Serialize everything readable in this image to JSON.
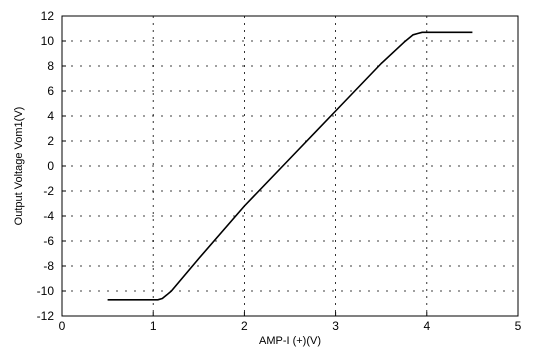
{
  "chart_data": {
    "type": "line",
    "title": "",
    "xlabel": "AMP-I (+)(V)",
    "ylabel": "Output Voltage Vom1(V)",
    "xlim": [
      0,
      5
    ],
    "ylim": [
      -12,
      12
    ],
    "xticks": [
      0,
      1,
      2,
      3,
      4,
      5
    ],
    "yticks": [
      -12,
      -10,
      -8,
      -6,
      -4,
      -2,
      0,
      2,
      4,
      6,
      8,
      10,
      12
    ],
    "grid": true,
    "legend": "none",
    "series": [
      {
        "color": "#000000",
        "x": [
          0.5,
          1.0,
          1.05,
          1.1,
          1.15,
          1.2,
          1.5,
          2.0,
          2.5,
          3.0,
          3.5,
          3.75,
          3.85,
          3.9,
          3.95,
          4.0,
          4.5
        ],
        "y": [
          -10.7,
          -10.7,
          -10.7,
          -10.6,
          -10.3,
          -10.0,
          -7.4,
          -3.2,
          0.6,
          4.4,
          8.2,
          9.9,
          10.5,
          10.6,
          10.7,
          10.7,
          10.7
        ]
      }
    ]
  }
}
